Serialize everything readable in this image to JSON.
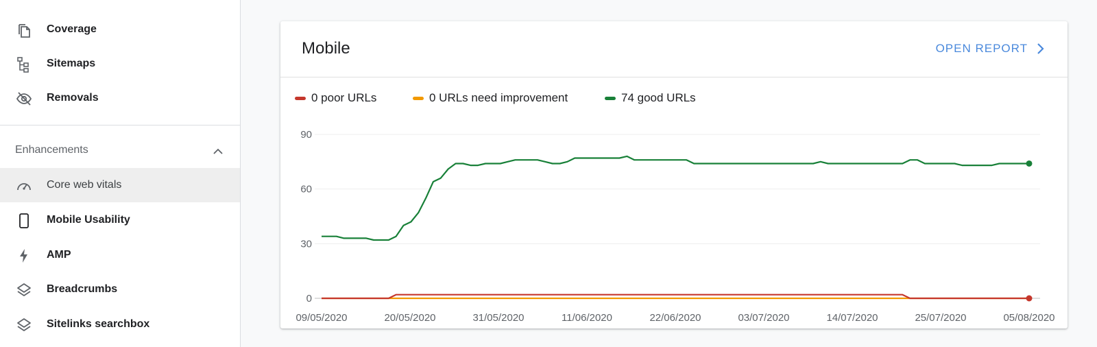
{
  "sidebar": {
    "items": [
      {
        "label": "Coverage",
        "icon": "coverage-icon"
      },
      {
        "label": "Sitemaps",
        "icon": "sitemaps-icon"
      },
      {
        "label": "Removals",
        "icon": "removals-icon"
      }
    ],
    "enhancements": {
      "title": "Enhancements",
      "expanded": true,
      "items": [
        {
          "label": "Core web vitals",
          "icon": "speedometer-icon",
          "active": true
        },
        {
          "label": "Mobile Usability",
          "icon": "mobile-phone-icon"
        },
        {
          "label": "AMP",
          "icon": "lightning-bolt-icon"
        },
        {
          "label": "Breadcrumbs",
          "icon": "layers-icon"
        },
        {
          "label": "Sitelinks searchbox",
          "icon": "layers-icon"
        }
      ]
    }
  },
  "card": {
    "title": "Mobile",
    "open_report_label": "OPEN REPORT",
    "legend": [
      {
        "label": "0 poor URLs",
        "color": "#c5372c"
      },
      {
        "label": "0 URLs need improvement",
        "color": "#f29900"
      },
      {
        "label": "74 good URLs",
        "color": "#188038"
      }
    ]
  },
  "chart_data": {
    "type": "line",
    "title": "",
    "xlabel": "",
    "ylabel": "",
    "x_start": "09/05/2020",
    "x_end": "05/08/2020",
    "x_ticks": [
      "09/05/2020",
      "20/05/2020",
      "31/05/2020",
      "11/06/2020",
      "22/06/2020",
      "03/07/2020",
      "14/07/2020",
      "25/07/2020",
      "05/08/2020"
    ],
    "y_ticks": [
      0,
      30,
      60,
      90
    ],
    "ylim": [
      0,
      90
    ],
    "grid": true,
    "series": [
      {
        "name": "good URLs",
        "color": "#188038",
        "values": [
          34,
          34,
          34,
          33,
          33,
          33,
          33,
          32,
          32,
          32,
          34,
          40,
          42,
          47,
          55,
          64,
          66,
          71,
          74,
          74,
          73,
          73,
          74,
          74,
          74,
          75,
          76,
          76,
          76,
          76,
          75,
          74,
          74,
          75,
          77,
          77,
          77,
          77,
          77,
          77,
          77,
          78,
          76,
          76,
          76,
          76,
          76,
          76,
          76,
          76,
          74,
          74,
          74,
          74,
          74,
          74,
          74,
          74,
          74,
          74,
          74,
          74,
          74,
          74,
          74,
          74,
          74,
          75,
          74,
          74,
          74,
          74,
          74,
          74,
          74,
          74,
          74,
          74,
          74,
          76,
          76,
          74,
          74,
          74,
          74,
          74,
          73,
          73,
          73,
          73,
          73,
          74,
          74,
          74,
          74,
          74
        ]
      },
      {
        "name": "URLs need improvement",
        "color": "#f29900",
        "values": [
          0,
          0,
          0,
          0,
          0,
          0,
          0,
          0,
          0,
          0,
          0,
          0,
          0,
          0,
          0,
          0,
          0,
          0,
          0,
          0,
          0,
          0,
          0,
          0,
          0,
          0,
          0,
          0,
          0,
          0,
          0,
          0,
          0,
          0,
          0,
          0,
          0,
          0,
          0,
          0,
          0,
          0,
          0,
          0,
          0,
          0,
          0,
          0,
          0,
          0,
          0,
          0,
          0,
          0,
          0,
          0,
          0,
          0,
          0,
          0,
          0,
          0,
          0,
          0,
          0,
          0,
          0,
          0,
          0,
          0,
          0,
          0,
          0,
          0,
          0,
          0,
          0,
          0,
          0,
          0,
          0,
          0,
          0,
          0,
          0,
          0,
          0,
          0,
          0,
          0,
          0,
          0,
          0,
          0,
          0,
          0
        ]
      },
      {
        "name": "poor URLs",
        "color": "#c5372c",
        "values": [
          0,
          0,
          0,
          0,
          0,
          0,
          0,
          0,
          0,
          0,
          2,
          2,
          2,
          2,
          2,
          2,
          2,
          2,
          2,
          2,
          2,
          2,
          2,
          2,
          2,
          2,
          2,
          2,
          2,
          2,
          2,
          2,
          2,
          2,
          2,
          2,
          2,
          2,
          2,
          2,
          2,
          2,
          2,
          2,
          2,
          2,
          2,
          2,
          2,
          2,
          2,
          2,
          2,
          2,
          2,
          2,
          2,
          2,
          2,
          2,
          2,
          2,
          2,
          2,
          2,
          2,
          2,
          2,
          2,
          2,
          2,
          2,
          2,
          2,
          2,
          2,
          2,
          2,
          2,
          0,
          0,
          0,
          0,
          0,
          0,
          0,
          0,
          0,
          0,
          0,
          0,
          0,
          0,
          0,
          0,
          0
        ]
      }
    ]
  }
}
